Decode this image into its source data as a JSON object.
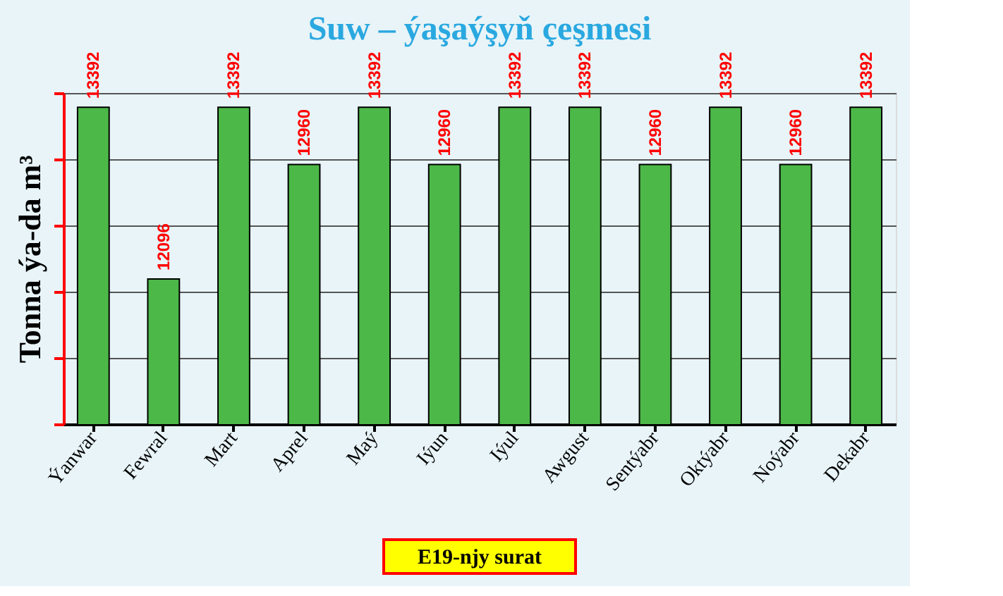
{
  "chart_data": {
    "type": "bar",
    "title": "Suw – ýaşaýşyň çeşmesi",
    "ylabel": "Tonna ýa-da m³",
    "categories": [
      "Ýanwar",
      "Fewral",
      "Mart",
      "Aprel",
      "Maý",
      "Iýun",
      "Iýul",
      "Awgust",
      "Sentýabr",
      "Oktýabr",
      "Noýabr",
      "Dekabr"
    ],
    "values": [
      13392,
      12096,
      13392,
      12960,
      13392,
      12960,
      13392,
      13392,
      12960,
      13392,
      12960,
      13392
    ],
    "color": "#4cb848",
    "data_labels": true,
    "grid": "y",
    "ylim": [
      11000,
      13500
    ],
    "yticks": [
      {
        "value": 11000,
        "label": null
      },
      {
        "value": 11500,
        "label": null
      },
      {
        "value": 12000,
        "label": null
      },
      {
        "value": 12500,
        "label": null
      },
      {
        "value": 13000,
        "label": null
      },
      {
        "value": 13500,
        "label": null
      }
    ],
    "tick_labels": "x",
    "annotations": [
      "E19-njy surat"
    ]
  }
}
